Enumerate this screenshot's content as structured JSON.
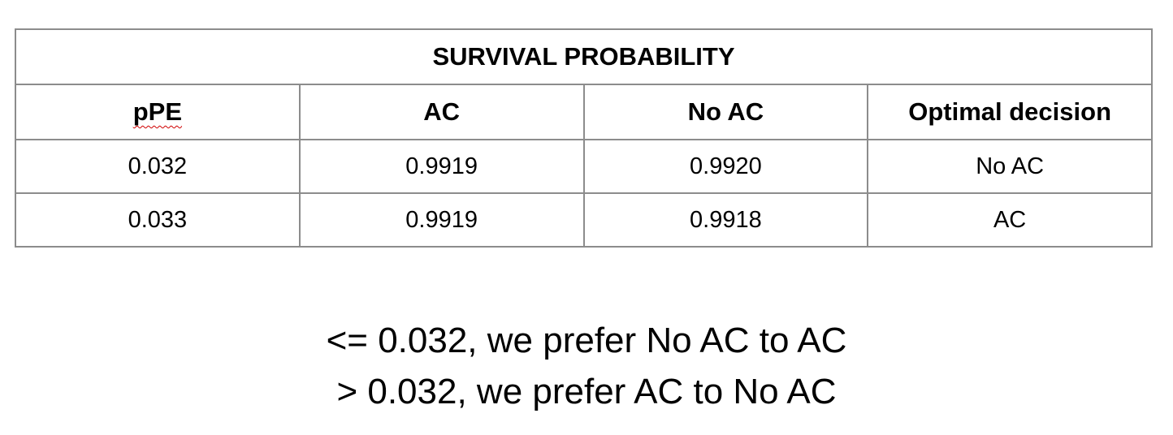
{
  "table": {
    "title": "SURVIVAL PROBABILITY",
    "header": [
      "pPE",
      "AC",
      "No AC",
      "Optimal decision"
    ],
    "rows": [
      [
        "0.032",
        "0.9919",
        "0.9920",
        "No AC"
      ],
      [
        "0.033",
        "0.9919",
        "0.9918",
        "AC"
      ]
    ]
  },
  "notes": [
    "<= 0.032, we prefer No AC to AC",
    "> 0.032, we prefer AC to No AC"
  ]
}
